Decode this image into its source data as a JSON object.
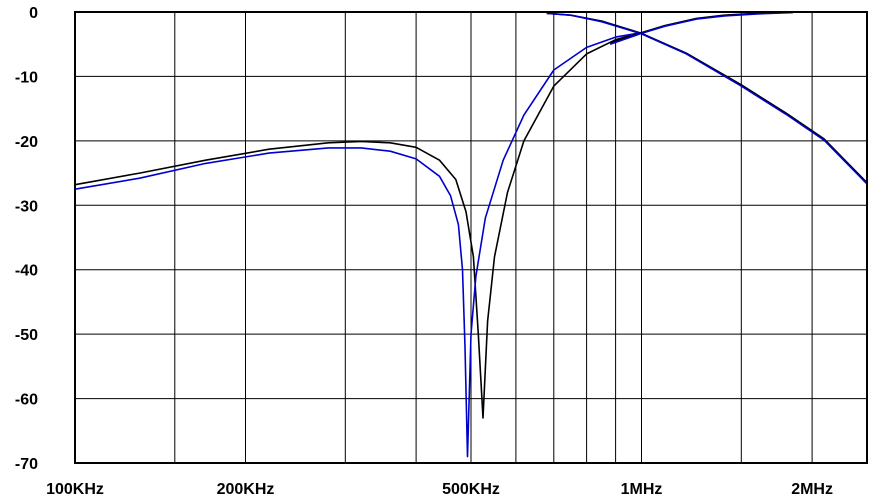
{
  "chart_data": {
    "type": "line",
    "x_scale": "log",
    "xlim_hz": [
      100000,
      2500000
    ],
    "ylim": [
      -70,
      0
    ],
    "grid": true,
    "x_gridlines_hz": [
      100000,
      150000,
      200000,
      300000,
      400000,
      500000,
      600000,
      700000,
      800000,
      900000,
      1000000,
      1500000,
      2000000,
      2500000
    ],
    "x_ticks": [
      {
        "hz": 100000,
        "label": "100KHz"
      },
      {
        "hz": 200000,
        "label": "200KHz"
      },
      {
        "hz": 500000,
        "label": "500KHz"
      },
      {
        "hz": 1000000,
        "label": "1MHz"
      },
      {
        "hz": 2000000,
        "label": "2MHz"
      }
    ],
    "y_ticks": [
      {
        "value": 0,
        "label": "0"
      },
      {
        "value": -10,
        "label": "-10"
      },
      {
        "value": -20,
        "label": "-20"
      },
      {
        "value": -30,
        "label": "-30"
      },
      {
        "value": -40,
        "label": "-40"
      },
      {
        "value": -50,
        "label": "-50"
      },
      {
        "value": -60,
        "label": "-60"
      },
      {
        "value": -70,
        "label": "-70"
      }
    ],
    "series": [
      {
        "color": "#000000",
        "x_hz": [
          100000,
          130000,
          170000,
          220000,
          280000,
          320000,
          360000,
          400000,
          440000,
          470000,
          490000,
          505000,
          515000,
          525000,
          535000,
          550000,
          580000,
          620000,
          700000,
          800000,
          900000,
          1000000
        ],
        "y": [
          -26.8,
          -25,
          -23,
          -21.3,
          -20.3,
          -20.1,
          -20.3,
          -21,
          -23,
          -26,
          -31,
          -38,
          -50,
          -63,
          -48,
          -38,
          -28,
          -20,
          -11.5,
          -6.5,
          -4.3,
          -3.2
        ]
      },
      {
        "color": "#0000cc",
        "x_hz": [
          100000,
          130000,
          170000,
          220000,
          280000,
          320000,
          360000,
          400000,
          440000,
          460000,
          475000,
          483000,
          488000,
          493000,
          500000,
          510000,
          530000,
          570000,
          620000,
          700000,
          800000,
          900000,
          1000000
        ],
        "y": [
          -27.5,
          -25.8,
          -23.5,
          -21.9,
          -21.1,
          -21.1,
          -21.6,
          -22.8,
          -25.5,
          -28.5,
          -33,
          -40,
          -52,
          -69,
          -50,
          -41,
          -32,
          -23,
          -16,
          -9,
          -5.5,
          -3.9,
          -3.2
        ]
      },
      {
        "color": "#000000",
        "x_hz": [
          680000,
          750000,
          850000,
          950000,
          1000000,
          1200000,
          1500000,
          1800000,
          2100000,
          2500000
        ],
        "y": [
          -0.2,
          -0.5,
          -1.4,
          -2.7,
          -3.3,
          -6.4,
          -11.3,
          -15.7,
          -19.7,
          -26.5
        ]
      },
      {
        "color": "#0000cc",
        "x_hz": [
          680000,
          750000,
          850000,
          950000,
          1000000,
          1200000,
          1500000,
          1800000,
          2100000,
          2500000
        ],
        "y": [
          -0.2,
          -0.5,
          -1.5,
          -2.8,
          -3.4,
          -6.5,
          -11.5,
          -15.9,
          -19.9,
          -26.7
        ]
      },
      {
        "color": "#000000",
        "x_hz": [
          880000,
          950000,
          1000000,
          1100000,
          1250000,
          1400000,
          1600000,
          1850000
        ],
        "y": [
          -4.8,
          -3.8,
          -3.2,
          -2.1,
          -1,
          -0.5,
          -0.2,
          -0.05
        ]
      },
      {
        "color": "#0000cc",
        "x_hz": [
          880000,
          950000,
          1000000,
          1100000,
          1250000,
          1400000,
          1600000,
          1850000
        ],
        "y": [
          -5,
          -4,
          -3.3,
          -2.2,
          -1.1,
          -0.6,
          -0.3,
          -0.1
        ]
      }
    ]
  }
}
